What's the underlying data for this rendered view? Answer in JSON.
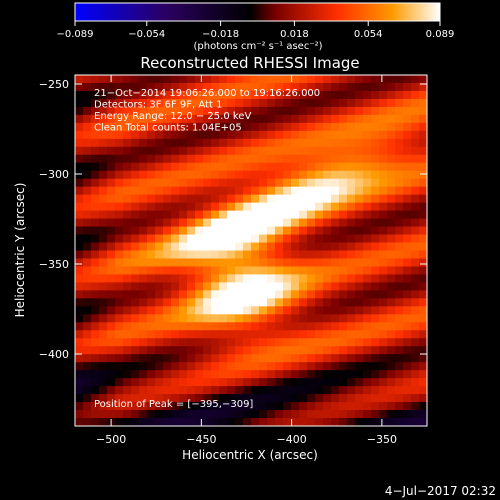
{
  "colorbar": {
    "ticks": [
      -0.089,
      -0.054,
      -0.018,
      0.018,
      0.054,
      0.089
    ],
    "tick_labels": [
      "−0.089",
      "−0.054",
      "−0.018",
      "0.018",
      "0.054",
      "0.089"
    ],
    "unit_label": "(photons cm⁻² s⁻¹ asec⁻²)",
    "range": [
      -0.089,
      0.089
    ],
    "colormap": [
      "#0000ff",
      "#2a0060",
      "#000000",
      "#7a0000",
      "#ff3000",
      "#ff9a00",
      "#ffffff"
    ]
  },
  "chart_data": {
    "type": "heatmap",
    "title": "Reconstructed RHESSI Image",
    "xlabel": "Heliocentric X (arcsec)",
    "ylabel": "Heliocentric Y (arcsec)",
    "xlim": [
      -520,
      -325
    ],
    "ylim": [
      -440,
      -245
    ],
    "x_ticks": [
      -500,
      -450,
      -400,
      -350
    ],
    "x_tick_labels": [
      "−500",
      "−450",
      "−400",
      "−350"
    ],
    "y_ticks": [
      -250,
      -300,
      -350,
      -400
    ],
    "y_tick_labels": [
      "−250",
      "−300",
      "−350",
      "−400"
    ],
    "info_lines": [
      "21−Oct−2014 19:06:26.000 to 19:16:26.000",
      "Detectors: 3F 6F 9F, Att 1",
      "Energy Range: 12.0 − 25.0 keV",
      "Clean     Total counts: 1.04E+05"
    ],
    "peak_label": "Position of Peak = [−395,−309]",
    "peak": [
      -395,
      -309
    ],
    "grid": false
  },
  "footer": {
    "date": "4−Jul−2017 02:32"
  }
}
